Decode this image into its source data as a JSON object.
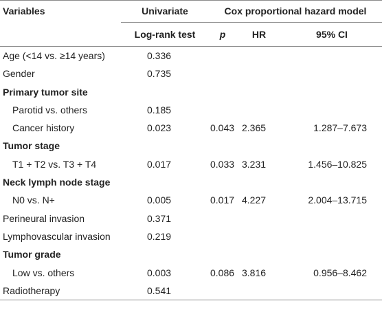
{
  "header": {
    "variables": "Variables",
    "univariate": "Univariate",
    "cox": "Cox proportional hazard model",
    "logrank": "Log-rank test",
    "p": "p",
    "hr": "HR",
    "ci": "95% CI"
  },
  "rows": [
    {
      "label": "Age (<14 vs. ≥14 years)",
      "logrank": "0.336",
      "p": "",
      "hr": "",
      "ci": ""
    },
    {
      "label": "Gender",
      "logrank": "0.735",
      "p": "",
      "hr": "",
      "ci": ""
    },
    {
      "label": "Primary tumor site",
      "logrank": "",
      "p": "",
      "hr": "",
      "ci": ""
    },
    {
      "label": "Parotid vs. others",
      "logrank": "0.185",
      "p": "",
      "hr": "",
      "ci": ""
    },
    {
      "label": "Cancer history",
      "logrank": "0.023",
      "p": "0.043",
      "hr": "2.365",
      "ci": "1.287–7.673"
    },
    {
      "label": "Tumor stage",
      "logrank": "",
      "p": "",
      "hr": "",
      "ci": ""
    },
    {
      "label": "T1 + T2 vs. T3 + T4",
      "logrank": "0.017",
      "p": "0.033",
      "hr": "3.231",
      "ci": "1.456–10.825"
    },
    {
      "label": "Neck lymph node stage",
      "logrank": "",
      "p": "",
      "hr": "",
      "ci": ""
    },
    {
      "label": "N0 vs. N+",
      "logrank": "0.005",
      "p": "0.017",
      "hr": "4.227",
      "ci": "2.004–13.715"
    },
    {
      "label": "Perineural invasion",
      "logrank": "0.371",
      "p": "",
      "hr": "",
      "ci": ""
    },
    {
      "label": "Lymphovascular invasion",
      "logrank": "0.219",
      "p": "",
      "hr": "",
      "ci": ""
    },
    {
      "label": "Tumor grade",
      "logrank": "",
      "p": "",
      "hr": "",
      "ci": ""
    },
    {
      "label": "Low vs. others",
      "logrank": "0.003",
      "p": "0.086",
      "hr": "3.816",
      "ci": "0.956–8.462"
    },
    {
      "label": "Radiotherapy",
      "logrank": "0.541",
      "p": "",
      "hr": "",
      "ci": ""
    }
  ]
}
